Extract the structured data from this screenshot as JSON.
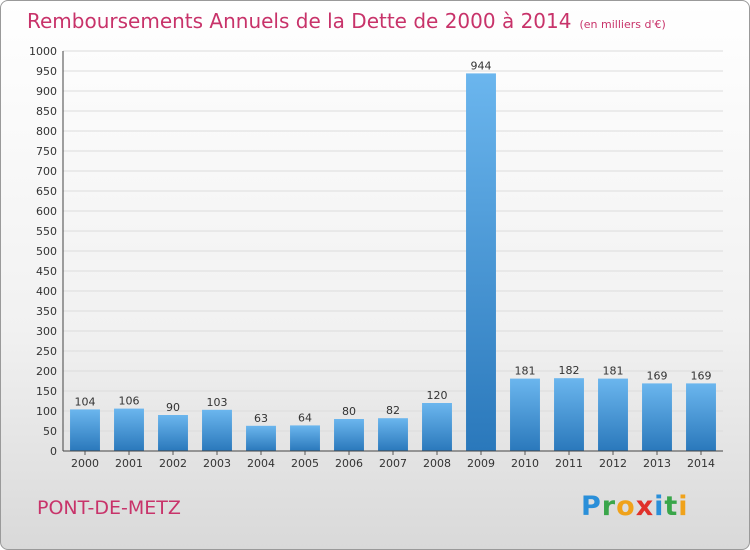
{
  "title": "Remboursements Annuels de la Dette de 2000 à 2014",
  "unit": "(en milliers d'€)",
  "city": "PONT-DE-METZ",
  "logo": {
    "letters": [
      "P",
      "r",
      "o",
      "x",
      "i",
      "t",
      "i"
    ],
    "colors": [
      "#2a8fd9",
      "#3aa64a",
      "#f0a21a",
      "#e0312b",
      "#2a8fd9",
      "#3aa64a",
      "#f0a21a"
    ]
  },
  "colors": {
    "bar": "#3d95d8",
    "bar_light": "#6bb6ee",
    "bar_dark": "#2a78bb",
    "text": "#c8336a"
  },
  "chart_data": {
    "type": "bar",
    "categories": [
      "2000",
      "2001",
      "2002",
      "2003",
      "2004",
      "2005",
      "2006",
      "2007",
      "2008",
      "2009",
      "2010",
      "2011",
      "2012",
      "2013",
      "2014"
    ],
    "values": [
      104,
      106,
      90,
      103,
      63,
      64,
      80,
      82,
      120,
      944,
      181,
      182,
      181,
      169,
      169
    ],
    "ylim": [
      0,
      1000
    ],
    "yticks": [
      0,
      50,
      100,
      150,
      200,
      250,
      300,
      350,
      400,
      450,
      500,
      550,
      600,
      650,
      700,
      750,
      800,
      850,
      900,
      950,
      1000
    ],
    "grid": true,
    "title": "Remboursements Annuels de la Dette de 2000 à 2014",
    "xlabel": "",
    "ylabel": ""
  }
}
